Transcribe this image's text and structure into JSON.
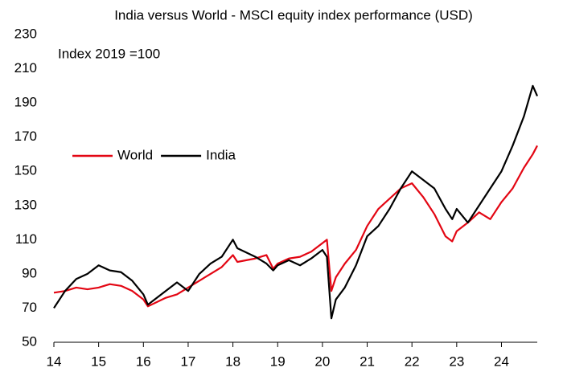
{
  "chart_data": {
    "type": "line",
    "title": "India versus World - MSCI equity index performance (USD)",
    "annotation": "Index 2019 =100",
    "x": [
      14,
      14.25,
      14.5,
      14.75,
      15,
      15.25,
      15.5,
      15.75,
      16,
      16.1,
      16.5,
      16.75,
      17,
      17.25,
      17.5,
      17.75,
      18,
      18.1,
      18.5,
      18.75,
      18.9,
      19,
      19.25,
      19.5,
      19.75,
      20,
      20.1,
      20.2,
      20.3,
      20.5,
      20.75,
      21,
      21.25,
      21.5,
      21.75,
      22,
      22.25,
      22.5,
      22.75,
      22.9,
      23,
      23.25,
      23.5,
      23.75,
      24,
      24.25,
      24.5,
      24.7,
      24.8
    ],
    "series": [
      {
        "name": "World",
        "color": "#e30613",
        "values": [
          79,
          80,
          82,
          81,
          82,
          84,
          83,
          80,
          75,
          71,
          76,
          78,
          82,
          86,
          90,
          94,
          101,
          97,
          99,
          101,
          93,
          96,
          99,
          100,
          103,
          108,
          110,
          80,
          88,
          96,
          104,
          118,
          128,
          134,
          140,
          143,
          135,
          125,
          112,
          109,
          115,
          120,
          126,
          122,
          132,
          140,
          152,
          160,
          165
        ]
      },
      {
        "name": "India",
        "color": "#000000",
        "values": [
          70,
          80,
          87,
          90,
          95,
          92,
          91,
          86,
          78,
          72,
          80,
          85,
          80,
          90,
          96,
          100,
          110,
          105,
          100,
          96,
          92,
          95,
          98,
          95,
          99,
          104,
          100,
          64,
          75,
          82,
          95,
          112,
          118,
          128,
          140,
          150,
          145,
          140,
          128,
          122,
          128,
          120,
          130,
          140,
          150,
          165,
          182,
          200,
          194
        ]
      }
    ],
    "xlim": [
      14,
      24.8
    ],
    "xticks": [
      14,
      15,
      16,
      17,
      18,
      19,
      20,
      21,
      22,
      23,
      24
    ],
    "ylim": [
      50,
      230
    ],
    "yticks": [
      50,
      70,
      90,
      110,
      130,
      150,
      170,
      190,
      210,
      230
    ]
  }
}
